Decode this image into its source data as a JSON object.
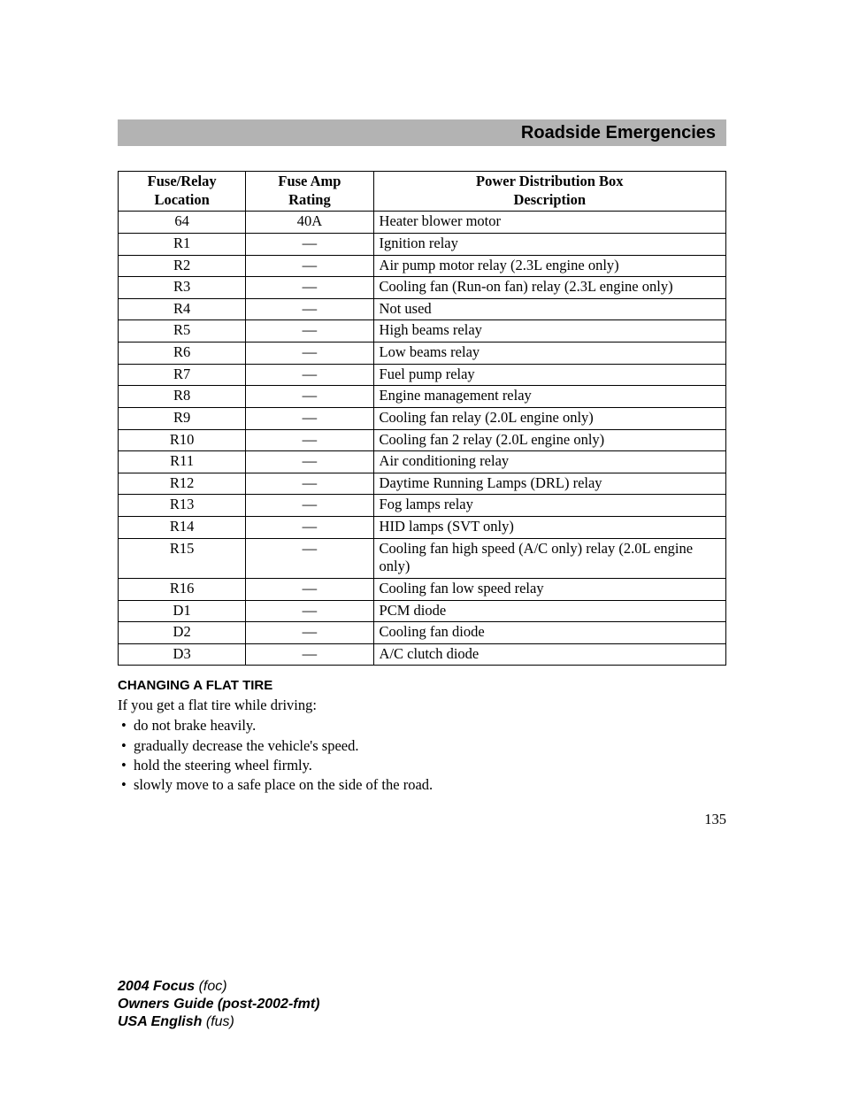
{
  "header": {
    "title": "Roadside Emergencies"
  },
  "table": {
    "columns": {
      "c0": "Fuse/Relay\nLocation",
      "c1": "Fuse Amp\nRating",
      "c2": "Power Distribution Box\nDescription"
    },
    "rows": [
      {
        "loc": "64",
        "amp": "40A",
        "desc": "Heater blower motor"
      },
      {
        "loc": "R1",
        "amp": "—",
        "desc": "Ignition relay"
      },
      {
        "loc": "R2",
        "amp": "—",
        "desc": "Air pump motor relay (2.3L engine only)"
      },
      {
        "loc": "R3",
        "amp": "—",
        "desc": "Cooling fan (Run-on fan) relay (2.3L engine only)"
      },
      {
        "loc": "R4",
        "amp": "—",
        "desc": "Not used"
      },
      {
        "loc": "R5",
        "amp": "—",
        "desc": "High beams relay"
      },
      {
        "loc": "R6",
        "amp": "—",
        "desc": "Low beams relay"
      },
      {
        "loc": "R7",
        "amp": "—",
        "desc": "Fuel pump relay"
      },
      {
        "loc": "R8",
        "amp": "—",
        "desc": "Engine management relay"
      },
      {
        "loc": "R9",
        "amp": "—",
        "desc": "Cooling fan relay (2.0L engine only)"
      },
      {
        "loc": "R10",
        "amp": "—",
        "desc": "Cooling fan 2 relay (2.0L engine only)"
      },
      {
        "loc": "R11",
        "amp": "—",
        "desc": "Air conditioning relay"
      },
      {
        "loc": "R12",
        "amp": "—",
        "desc": "Daytime Running Lamps (DRL) relay"
      },
      {
        "loc": "R13",
        "amp": "—",
        "desc": "Fog lamps relay"
      },
      {
        "loc": "R14",
        "amp": "—",
        "desc": "HID lamps (SVT only)"
      },
      {
        "loc": "R15",
        "amp": "—",
        "desc": "Cooling fan high speed (A/C only) relay (2.0L engine only)"
      },
      {
        "loc": "R16",
        "amp": "—",
        "desc": "Cooling fan low speed relay"
      },
      {
        "loc": "D1",
        "amp": "—",
        "desc": "PCM diode"
      },
      {
        "loc": "D2",
        "amp": "—",
        "desc": "Cooling fan diode"
      },
      {
        "loc": "D3",
        "amp": "—",
        "desc": "A/C clutch diode"
      }
    ]
  },
  "section": {
    "heading": "CHANGING A FLAT TIRE",
    "intro": "If you get a flat tire while driving:",
    "bullets": [
      "do not brake heavily.",
      "gradually decrease the vehicle's speed.",
      "hold the steering wheel firmly.",
      "slowly move to a safe place on the side of the road."
    ]
  },
  "page_number": "135",
  "footer": {
    "line1_bold": "2004 Focus",
    "line1_ital": " (foc)",
    "line2_bold": "Owners Guide (post-2002-fmt)",
    "line3_bold": "USA English",
    "line3_ital": " (fus)"
  }
}
